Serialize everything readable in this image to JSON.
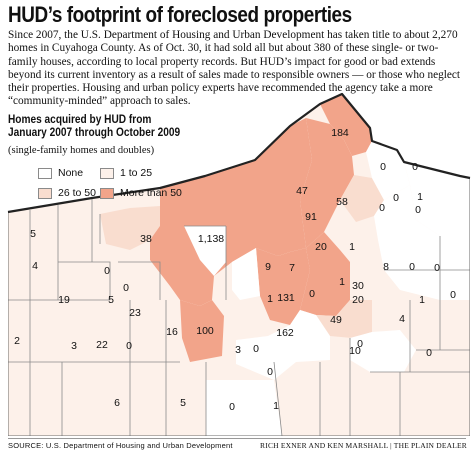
{
  "title": "HUD’s footprint of foreclosed properties",
  "intro": "Since 2007, the U.S. Department of Housing and Urban Development has taken title to about 2,270 homes in Cuyahoga County. As of Oct. 30, it had sold all but about 380 of these single- or two-family houses, according to local property records. But HUD’s impact for good or bad extends beyond its current inventory as a result of sales made to responsible owners — or those who neglect their properties. Housing and urban policy experts have recommended the agency take a more “community-minded” approach to sales.",
  "subtitle": "Homes acquired by HUD from January 2007 through October 2009",
  "note": "(single-family homes and doubles)",
  "legend": [
    {
      "label": "None",
      "color": "#ffffff"
    },
    {
      "label": "1 to 25",
      "color": "#fdf1ea"
    },
    {
      "label": "26 to 50",
      "color": "#f9ddcf"
    },
    {
      "label": "More than 50",
      "color": "#f2a48a"
    }
  ],
  "colors": {
    "lake": "#ffffff",
    "border": "#8a8a8a",
    "coast": "#222222"
  },
  "map_labels": [
    "184",
    "0",
    "0",
    "47",
    "58",
    "0",
    "1",
    "91",
    "0",
    "0",
    "5",
    "38",
    "1,138",
    "20",
    "1",
    "4",
    "0",
    "9",
    "7",
    "8",
    "0",
    "0",
    "0",
    "1",
    "30",
    "19",
    "0",
    "5",
    "23",
    "131",
    "0",
    "1",
    "20",
    "1",
    "22",
    "16",
    "100",
    "162",
    "49",
    "4",
    "2",
    "0",
    "0",
    "3",
    "0",
    "10",
    "0",
    "3",
    "0",
    "6",
    "5",
    "0",
    "1"
  ],
  "source": "SOURCE: U.S. Department of Housing and Urban Development",
  "credit": "RICH EXNER AND KEN MARSHALL | THE PLAIN DEALER"
}
